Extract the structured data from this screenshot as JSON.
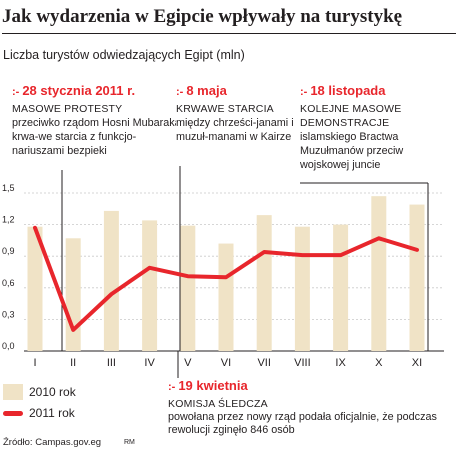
{
  "title": "Jak wydarzenia w Egipcie wpływały na turystykę",
  "subtitle": "Liczba turystów odwiedzających Egipt (mln)",
  "annotations": [
    {
      "mark": ":-",
      "date": "28 stycznia 2011 r.",
      "head": "MASOWE PROTESTY",
      "desc": "przeciwko rządom Hosni Mubaraka i krwa-we starcia z funkcjo-nariuszami bezpieki"
    },
    {
      "mark": ":-",
      "date": "8 maja",
      "head": "KRWAWE STARCIA",
      "desc": "między chrześci-janami i muzuł-manami w Kairze"
    },
    {
      "mark": ":-",
      "date": "18 listopada",
      "head": "KOLEJNE MASOWE DEMONSTRACJE",
      "desc": "islamskiego Bractwa Muzułmanów przeciw wojskowej juncie"
    },
    {
      "mark": ":-",
      "date": "19 kwietnia",
      "head": "KOMISJA ŚLEDCZA",
      "desc": "powołana przez nowy rząd podała oficjalnie, że podczas rewolucji zginęło 846 osób"
    }
  ],
  "legend": {
    "bar_label": "2010 rok",
    "line_label": "2011 rok"
  },
  "source": "Źródło: Campas.gov.eg",
  "credit": "RM",
  "chart_data": {
    "type": "bar",
    "categories": [
      "I",
      "II",
      "III",
      "IV",
      "V",
      "VI",
      "VII",
      "VIII",
      "IX",
      "X",
      "XI"
    ],
    "ylim": [
      0,
      1.5
    ],
    "yticks": [
      "0,0",
      "0,3",
      "0,6",
      "0,9",
      "1,2",
      "1,5"
    ],
    "ytick_values": [
      0,
      0.3,
      0.6,
      0.9,
      1.2,
      1.5
    ],
    "grid": true,
    "series": [
      {
        "name": "2010 rok",
        "kind": "bar",
        "color": "#f0e3c6",
        "values": [
          1.18,
          1.07,
          1.33,
          1.24,
          1.19,
          1.02,
          1.29,
          1.18,
          1.2,
          1.47,
          1.39
        ]
      },
      {
        "name": "2011 rok",
        "kind": "line",
        "color": "#e8262c",
        "values": [
          1.17,
          0.2,
          0.54,
          0.79,
          0.71,
          0.7,
          0.94,
          0.91,
          0.91,
          1.07,
          0.96
        ]
      }
    ]
  }
}
